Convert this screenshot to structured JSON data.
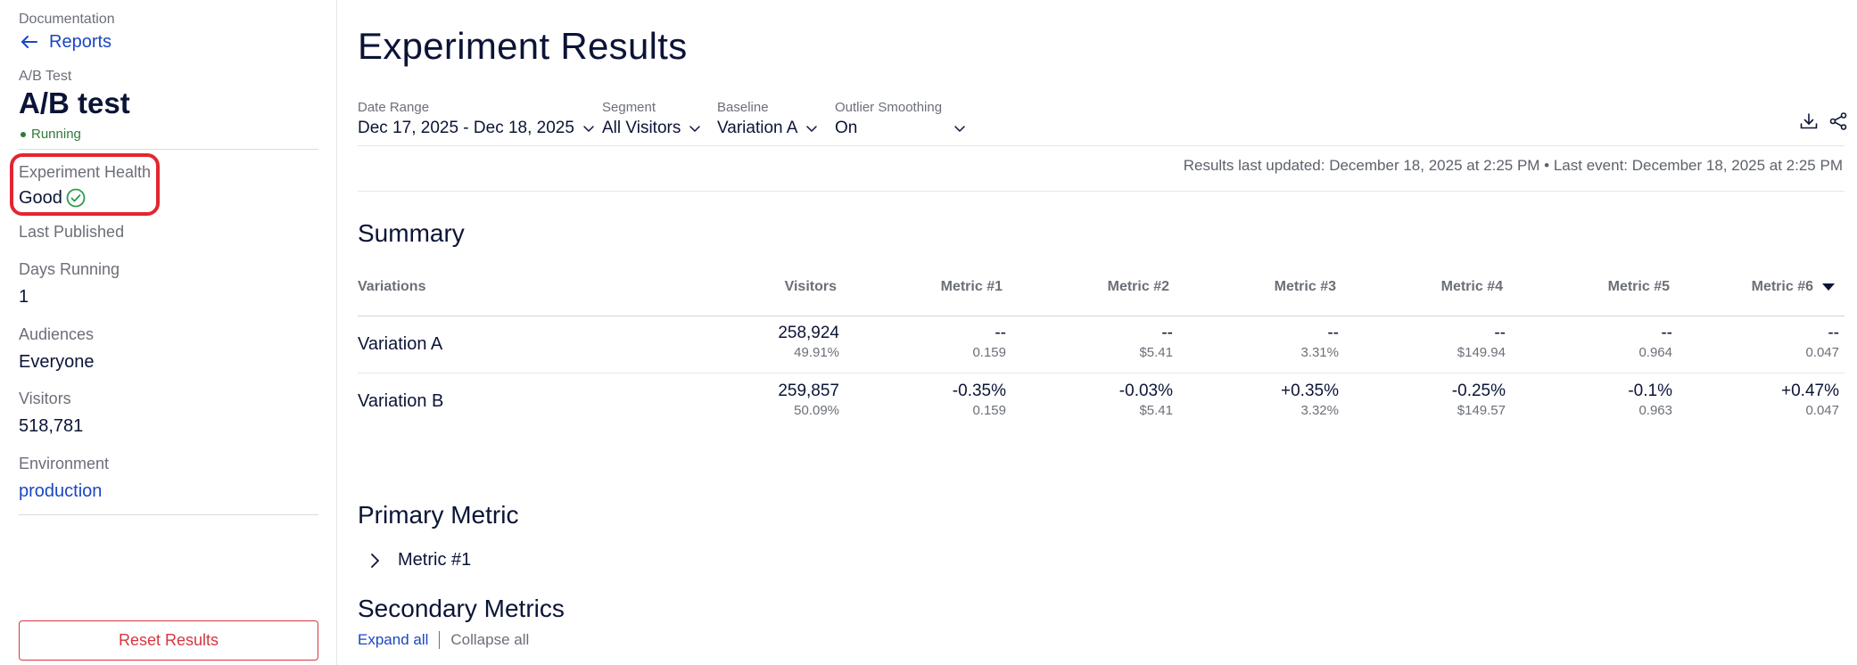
{
  "sidebar": {
    "docs_label": "Documentation",
    "back_label": "Reports",
    "test_type": "A/B Test",
    "test_title": "A/B test",
    "status": "Running",
    "health_label": "Experiment Health",
    "health_value": "Good",
    "last_published_label": "Last Published",
    "days_running_label": "Days Running",
    "days_running_value": "1",
    "audiences_label": "Audiences",
    "audiences_value": "Everyone",
    "visitors_label": "Visitors",
    "visitors_value": "518,781",
    "environment_label": "Environment",
    "environment_value": "production",
    "reset_label": "Reset Results"
  },
  "main": {
    "title": "Experiment Results",
    "filters": {
      "date_range": {
        "label": "Date Range",
        "value": "Dec 17, 2025 - Dec 18, 2025"
      },
      "segment": {
        "label": "Segment",
        "value": "All Visitors"
      },
      "baseline": {
        "label": "Baseline",
        "value": "Variation A"
      },
      "outlier": {
        "label": "Outlier Smoothing",
        "value": "On"
      }
    },
    "updated_text": "Results last updated: December 18, 2025 at 2:25 PM • Last event: December 18, 2025 at 2:25 PM",
    "summary_title": "Summary",
    "table": {
      "headers": [
        "Variations",
        "Visitors",
        "Metric #1",
        "Metric #2",
        "Metric #3",
        "Metric #4",
        "Metric #5",
        "Metric #6"
      ],
      "rows": [
        {
          "name": "Variation A",
          "visitors": {
            "main": "258,924",
            "sub": "49.91%"
          },
          "metrics": [
            {
              "main": "--",
              "sub": "0.159"
            },
            {
              "main": "--",
              "sub": "$5.41"
            },
            {
              "main": "--",
              "sub": "3.31%"
            },
            {
              "main": "--",
              "sub": "$149.94"
            },
            {
              "main": "--",
              "sub": "0.964"
            },
            {
              "main": "--",
              "sub": "0.047"
            }
          ]
        },
        {
          "name": "Variation B",
          "visitors": {
            "main": "259,857",
            "sub": "50.09%"
          },
          "metrics": [
            {
              "main": "-0.35%",
              "sub": "0.159"
            },
            {
              "main": "-0.03%",
              "sub": "$5.41"
            },
            {
              "main": "+0.35%",
              "sub": "3.32%"
            },
            {
              "main": "-0.25%",
              "sub": "$149.57"
            },
            {
              "main": "-0.1%",
              "sub": "0.963"
            },
            {
              "main": "+0.47%",
              "sub": "0.047"
            }
          ]
        }
      ]
    },
    "primary_title": "Primary Metric",
    "primary_metric": "Metric #1",
    "secondary_title": "Secondary Metrics",
    "expand_all": "Expand all",
    "collapse_all": "Collapse all"
  },
  "colors": {
    "link": "#1b46c4",
    "running": "#2f7a3a",
    "danger": "#d6373f",
    "highlight": "#e3252f"
  }
}
